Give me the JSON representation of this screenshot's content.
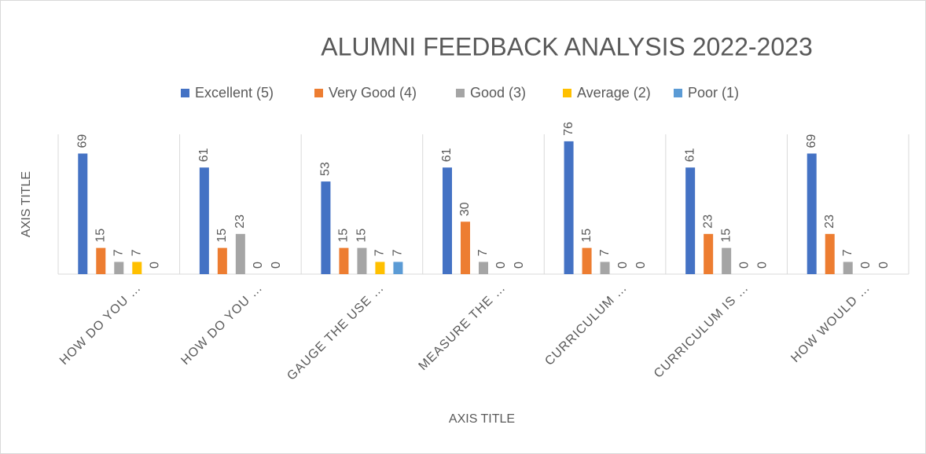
{
  "chart_data": {
    "type": "bar",
    "title": "ALUMNI FEEDBACK ANALYSIS 2022-2023",
    "x_label": "AXIS TITLE",
    "y_label": "AXIS TITLE",
    "categories": [
      "HOW DO YOU …",
      "HOW DO YOU …",
      "GAUGE THE USE …",
      "MEASURE THE …",
      "CURRICULUM …",
      "CURRICULUM IS …",
      "HOW WOULD …"
    ],
    "series": [
      {
        "name": "Excellent (5)",
        "color": "#4472c4",
        "values": [
          69,
          61,
          53,
          61,
          76,
          61,
          69
        ]
      },
      {
        "name": "Very Good (4)",
        "color": "#ed7d31",
        "values": [
          15,
          15,
          15,
          30,
          15,
          23,
          23
        ]
      },
      {
        "name": "Good (3)",
        "color": "#a5a5a5",
        "values": [
          7,
          23,
          15,
          7,
          7,
          15,
          7
        ]
      },
      {
        "name": "Average (2)",
        "color": "#ffc000",
        "values": [
          7,
          0,
          7,
          0,
          0,
          0,
          0
        ]
      },
      {
        "name": "Poor (1)",
        "color": "#5b9bd5",
        "values": [
          0,
          0,
          7,
          0,
          0,
          0,
          0
        ]
      }
    ],
    "ylim": [
      0,
      80
    ],
    "legend": "top",
    "data_labels": true
  }
}
